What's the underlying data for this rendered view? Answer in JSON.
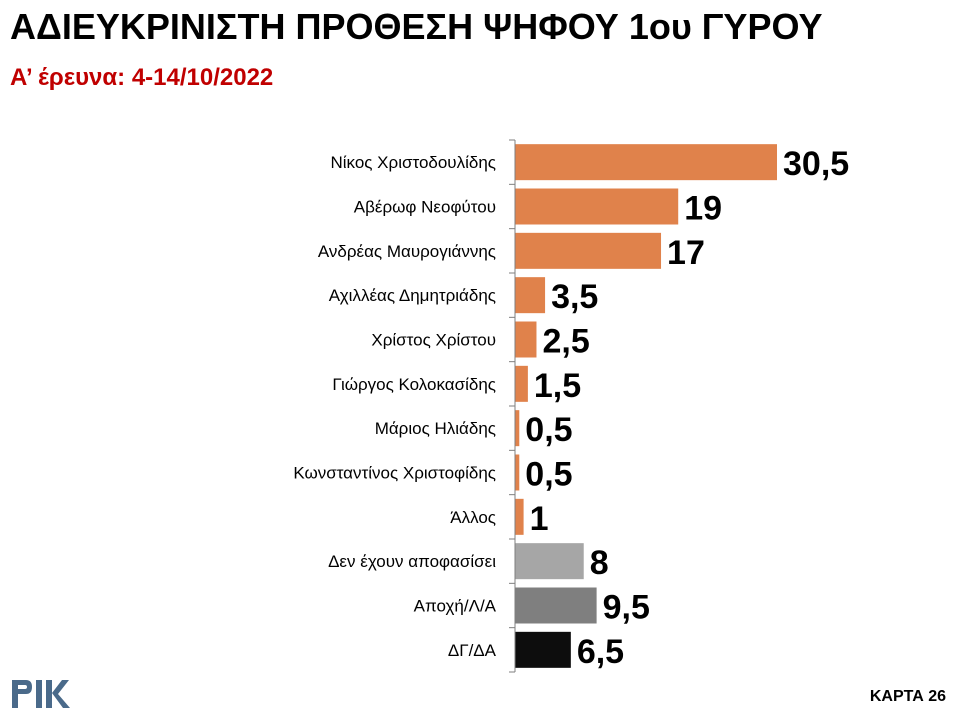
{
  "slide": {
    "title": "ΑΔΙΕΥΚΡΙΝΙΣΤΗ ΠΡΟΘΕΣΗ ΨΗΦΟΥ 1ου ΓΥΡΟΥ",
    "subtitle": "Α’ έρευνα: 4-14/10/2022",
    "slide_label": "ΚΑΡΤΑ 26",
    "logo": "ΡΙΚ"
  },
  "chart_data": {
    "type": "bar",
    "orientation": "horizontal",
    "title": "ΑΔΙΕΥΚΡΙΝΙΣΤΗ ΠΡΟΘΕΣΗ ΨΗΦΟΥ 1ου ΓΥΡΟΥ",
    "subtitle": "Α’ έρευνα: 4-14/10/2022",
    "xlabel": "",
    "ylabel": "",
    "xlim": [
      0,
      30.5
    ],
    "grid": false,
    "legend": "none",
    "categories": [
      "Νίκος Χριστοδουλίδης",
      "Αβέρωφ Νεοφύτου",
      "Ανδρέας Μαυρογιάννης",
      "Αχιλλέας Δημητριάδης",
      "Χρίστος Χρίστου",
      "Γιώργος Κολοκασίδης",
      "Μάριος Ηλιάδης",
      "Κωνσταντίνος Χριστοφίδης",
      "Άλλος",
      "Δεν έχουν αποφασίσει",
      "Αποχή/Λ/Α",
      "ΔΓ/ΔΑ"
    ],
    "values": [
      30.5,
      19,
      17,
      3.5,
      2.5,
      1.5,
      0.5,
      0.5,
      1,
      8,
      9.5,
      6.5
    ],
    "value_labels": [
      "30,5",
      "19",
      "17",
      "3,5",
      "2,5",
      "1,5",
      "0,5",
      "0,5",
      "1",
      "8",
      "9,5",
      "6,5"
    ],
    "colors": [
      "#e0824b",
      "#e0824b",
      "#e0824b",
      "#e0824b",
      "#e0824b",
      "#e0824b",
      "#e0824b",
      "#e0824b",
      "#e0824b",
      "#a6a6a6",
      "#7f7f7f",
      "#0d0d0d"
    ],
    "axis_color": "#7f7f7f"
  }
}
